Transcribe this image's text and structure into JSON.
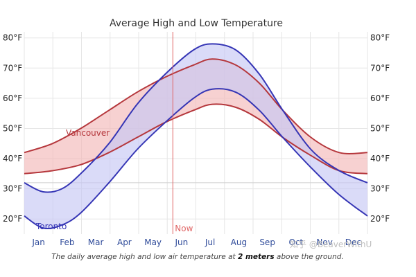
{
  "chart_data": {
    "type": "area",
    "title": "Average High and Low Temperature",
    "categories": [
      "Jan",
      "Feb",
      "Mar",
      "Apr",
      "May",
      "Jun",
      "Jul",
      "Aug",
      "Sep",
      "Oct",
      "Nov",
      "Dec"
    ],
    "ylim": [
      15,
      82
    ],
    "y_ticks": [
      20,
      30,
      40,
      50,
      60,
      70,
      80
    ],
    "y_tick_unit": "°F",
    "gridlines": true,
    "now_marker": {
      "label": "Now",
      "day": 158,
      "color": "#e06666"
    },
    "series": [
      {
        "name": "Vancouver",
        "color": "#b5373c",
        "fill": "#f2b8b8",
        "high": [
          [
            0,
            42
          ],
          [
            30,
            45
          ],
          [
            60,
            50
          ],
          [
            90,
            56
          ],
          [
            120,
            62
          ],
          [
            150,
            67
          ],
          [
            180,
            71
          ],
          [
            200,
            73
          ],
          [
            225,
            71
          ],
          [
            250,
            65
          ],
          [
            275,
            56
          ],
          [
            305,
            47
          ],
          [
            335,
            42
          ],
          [
            365,
            42
          ]
        ],
        "low": [
          [
            0,
            35
          ],
          [
            30,
            36
          ],
          [
            60,
            38
          ],
          [
            90,
            42
          ],
          [
            120,
            47
          ],
          [
            150,
            52
          ],
          [
            180,
            56
          ],
          [
            200,
            58
          ],
          [
            225,
            57
          ],
          [
            250,
            53
          ],
          [
            275,
            47
          ],
          [
            305,
            41
          ],
          [
            335,
            36
          ],
          [
            365,
            35
          ]
        ]
      },
      {
        "name": "Toronto",
        "color": "#3535b5",
        "fill": "#c6c8f5",
        "high": [
          [
            0,
            32
          ],
          [
            20,
            29
          ],
          [
            40,
            30
          ],
          [
            60,
            35
          ],
          [
            90,
            45
          ],
          [
            120,
            58
          ],
          [
            150,
            68
          ],
          [
            180,
            76
          ],
          [
            200,
            78
          ],
          [
            225,
            76
          ],
          [
            250,
            68
          ],
          [
            275,
            56
          ],
          [
            305,
            43
          ],
          [
            335,
            36
          ],
          [
            365,
            32
          ]
        ],
        "low": [
          [
            0,
            21
          ],
          [
            20,
            17
          ],
          [
            40,
            18
          ],
          [
            60,
            22
          ],
          [
            90,
            32
          ],
          [
            120,
            43
          ],
          [
            150,
            52
          ],
          [
            180,
            60
          ],
          [
            200,
            63
          ],
          [
            225,
            62
          ],
          [
            250,
            56
          ],
          [
            275,
            47
          ],
          [
            305,
            37
          ],
          [
            335,
            28
          ],
          [
            365,
            21
          ]
        ]
      }
    ],
    "caption": {
      "before": "The daily average high and low air temperature at ",
      "bold": "2 meters",
      "after": " above the ground."
    },
    "watermark": "知乎 @BeaverWithU"
  }
}
